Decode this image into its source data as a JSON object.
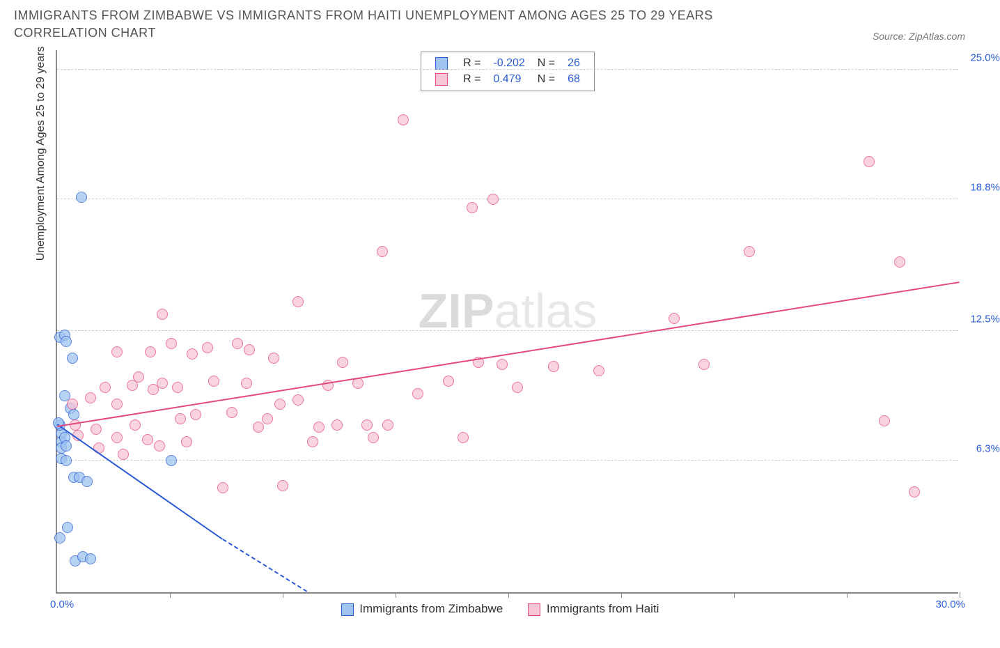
{
  "title": "IMMIGRANTS FROM ZIMBABWE VS IMMIGRANTS FROM HAITI UNEMPLOYMENT AMONG AGES 25 TO 29 YEARS CORRELATION CHART",
  "source": "Source: ZipAtlas.com",
  "watermark_bold": "ZIP",
  "watermark_light": "atlas",
  "chart": {
    "type": "scatter",
    "ylabel": "Unemployment Among Ages 25 to 29 years",
    "xlim": [
      0,
      30
    ],
    "ylim": [
      0,
      26
    ],
    "x_axis_min_label": "0.0%",
    "x_axis_max_label": "30.0%",
    "x_ticks": [
      3.75,
      7.5,
      11.25,
      15,
      18.75,
      22.5,
      26.25,
      30
    ],
    "y_gridlines": [
      6.3,
      12.5,
      18.8,
      25.0
    ],
    "y_tick_labels": [
      "6.3%",
      "12.5%",
      "18.8%",
      "25.0%"
    ],
    "background_color": "#ffffff",
    "grid_color": "#d0d0d0",
    "axis_color": "#808080",
    "marker_radius": 8,
    "marker_border_width": 1.5,
    "series": [
      {
        "name": "Immigrants from Zimbabwe",
        "color_fill": "#9ec3f0",
        "color_stroke": "#2b5cd6",
        "R": "-0.202",
        "N": "26",
        "trend": {
          "x1": 0,
          "y1": 8.0,
          "x2": 5.5,
          "y2": 2.5,
          "dash_to_x": 8.3
        },
        "points": [
          [
            0.15,
            7.6
          ],
          [
            0.15,
            7.2
          ],
          [
            0.15,
            6.9
          ],
          [
            0.25,
            7.4
          ],
          [
            0.1,
            8.0
          ],
          [
            0.3,
            7.0
          ],
          [
            0.05,
            8.1
          ],
          [
            0.1,
            12.2
          ],
          [
            0.25,
            12.3
          ],
          [
            0.3,
            12.0
          ],
          [
            0.5,
            11.2
          ],
          [
            0.45,
            8.8
          ],
          [
            0.25,
            9.4
          ],
          [
            0.55,
            8.5
          ],
          [
            0.15,
            6.4
          ],
          [
            0.3,
            6.3
          ],
          [
            0.55,
            5.5
          ],
          [
            0.75,
            5.5
          ],
          [
            1.0,
            5.3
          ],
          [
            0.35,
            3.1
          ],
          [
            0.1,
            2.6
          ],
          [
            0.6,
            1.5
          ],
          [
            0.85,
            1.7
          ],
          [
            1.1,
            1.6
          ],
          [
            3.8,
            6.3
          ],
          [
            0.8,
            18.9
          ]
        ]
      },
      {
        "name": "Immigrants from Haiti",
        "color_fill": "#f7c6d6",
        "color_stroke": "#e5497a",
        "R": "0.479",
        "N": "68",
        "trend": {
          "x1": 0,
          "y1": 7.9,
          "x2": 30,
          "y2": 14.8
        },
        "points": [
          [
            0.5,
            9.0
          ],
          [
            0.6,
            8.0
          ],
          [
            0.7,
            7.5
          ],
          [
            1.1,
            9.3
          ],
          [
            1.3,
            7.8
          ],
          [
            1.4,
            6.9
          ],
          [
            1.6,
            9.8
          ],
          [
            2.0,
            9.0
          ],
          [
            2.0,
            7.4
          ],
          [
            2.2,
            6.6
          ],
          [
            2.0,
            11.5
          ],
          [
            2.5,
            9.9
          ],
          [
            2.6,
            8.0
          ],
          [
            2.7,
            10.3
          ],
          [
            3.0,
            7.3
          ],
          [
            3.2,
            9.7
          ],
          [
            3.4,
            7.0
          ],
          [
            3.1,
            11.5
          ],
          [
            3.5,
            10.0
          ],
          [
            3.8,
            11.9
          ],
          [
            4.0,
            9.8
          ],
          [
            3.5,
            13.3
          ],
          [
            4.1,
            8.3
          ],
          [
            4.3,
            7.2
          ],
          [
            4.5,
            11.4
          ],
          [
            4.6,
            8.5
          ],
          [
            5.0,
            11.7
          ],
          [
            5.2,
            10.1
          ],
          [
            5.5,
            5.0
          ],
          [
            6.0,
            11.9
          ],
          [
            6.3,
            10.0
          ],
          [
            6.4,
            11.6
          ],
          [
            6.7,
            7.9
          ],
          [
            7.0,
            8.3
          ],
          [
            7.2,
            11.2
          ],
          [
            7.4,
            9.0
          ],
          [
            7.5,
            5.1
          ],
          [
            8.0,
            9.2
          ],
          [
            8.0,
            13.9
          ],
          [
            8.7,
            7.9
          ],
          [
            9.0,
            9.9
          ],
          [
            9.3,
            8.0
          ],
          [
            9.5,
            11.0
          ],
          [
            10.0,
            10.0
          ],
          [
            10.3,
            8.0
          ],
          [
            10.5,
            7.4
          ],
          [
            10.8,
            16.3
          ],
          [
            11.0,
            8.0
          ],
          [
            11.5,
            22.6
          ],
          [
            12.0,
            9.5
          ],
          [
            13.5,
            7.4
          ],
          [
            13.8,
            18.4
          ],
          [
            13.0,
            10.1
          ],
          [
            14.5,
            18.8
          ],
          [
            14.8,
            10.9
          ],
          [
            15.3,
            9.8
          ],
          [
            16.5,
            10.8
          ],
          [
            18.0,
            10.6
          ],
          [
            20.5,
            13.1
          ],
          [
            21.5,
            10.9
          ],
          [
            23.0,
            16.3
          ],
          [
            27.0,
            20.6
          ],
          [
            28.0,
            15.8
          ],
          [
            27.5,
            8.2
          ],
          [
            28.5,
            4.8
          ],
          [
            14.0,
            11.0
          ],
          [
            5.8,
            8.6
          ],
          [
            8.5,
            7.2
          ]
        ]
      }
    ],
    "legend_bottom": [
      {
        "label": "Immigrants from Zimbabwe",
        "fill": "#9ec3f0",
        "stroke": "#2b5cd6"
      },
      {
        "label": "Immigrants from Haiti",
        "fill": "#f7c6d6",
        "stroke": "#e5497a"
      }
    ]
  }
}
